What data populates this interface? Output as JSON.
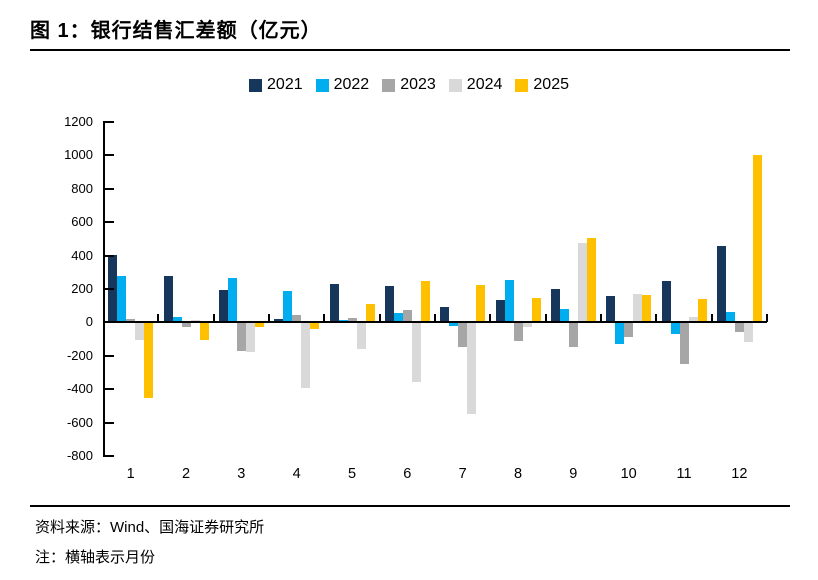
{
  "figure": {
    "title": "图 1：银行结售汇差额（亿元）",
    "source": "资料来源：Wind、国海证券研究所",
    "note": "注：横轴表示月份"
  },
  "chart_data": {
    "type": "bar",
    "title": "银行结售汇差额（亿元）",
    "categories": [
      "1",
      "2",
      "3",
      "4",
      "5",
      "6",
      "7",
      "8",
      "9",
      "10",
      "11",
      "12"
    ],
    "series": [
      {
        "name": "2021",
        "color": "#16365C",
        "values": [
          405,
          275,
          195,
          20,
          230,
          215,
          95,
          135,
          200,
          160,
          245,
          455
        ]
      },
      {
        "name": "2022",
        "color": "#00AEEF",
        "values": [
          275,
          35,
          265,
          190,
          15,
          55,
          -20,
          255,
          80,
          -130,
          -70,
          60
        ]
      },
      {
        "name": "2023",
        "color": "#A6A6A6",
        "values": [
          20,
          -30,
          -170,
          45,
          25,
          75,
          -150,
          -110,
          -145,
          -90,
          -250,
          -60
        ]
      },
      {
        "name": "2024",
        "color": "#D9D9D9",
        "values": [
          -105,
          15,
          -175,
          -390,
          -160,
          -355,
          -550,
          -25,
          475,
          170,
          30,
          -115
        ]
      },
      {
        "name": "2025",
        "color": "#FFC000",
        "values": [
          -455,
          -105,
          -30,
          -40,
          110,
          250,
          225,
          145,
          505,
          165,
          140,
          1000
        ]
      }
    ],
    "ylim": [
      -800,
      1200
    ],
    "yticks": [
      1200,
      1000,
      800,
      600,
      400,
      200,
      0,
      -200,
      -400,
      -600,
      -800
    ],
    "legend_position": "top-center",
    "grid": false,
    "xlabel": "月份",
    "ylabel": "亿元"
  }
}
